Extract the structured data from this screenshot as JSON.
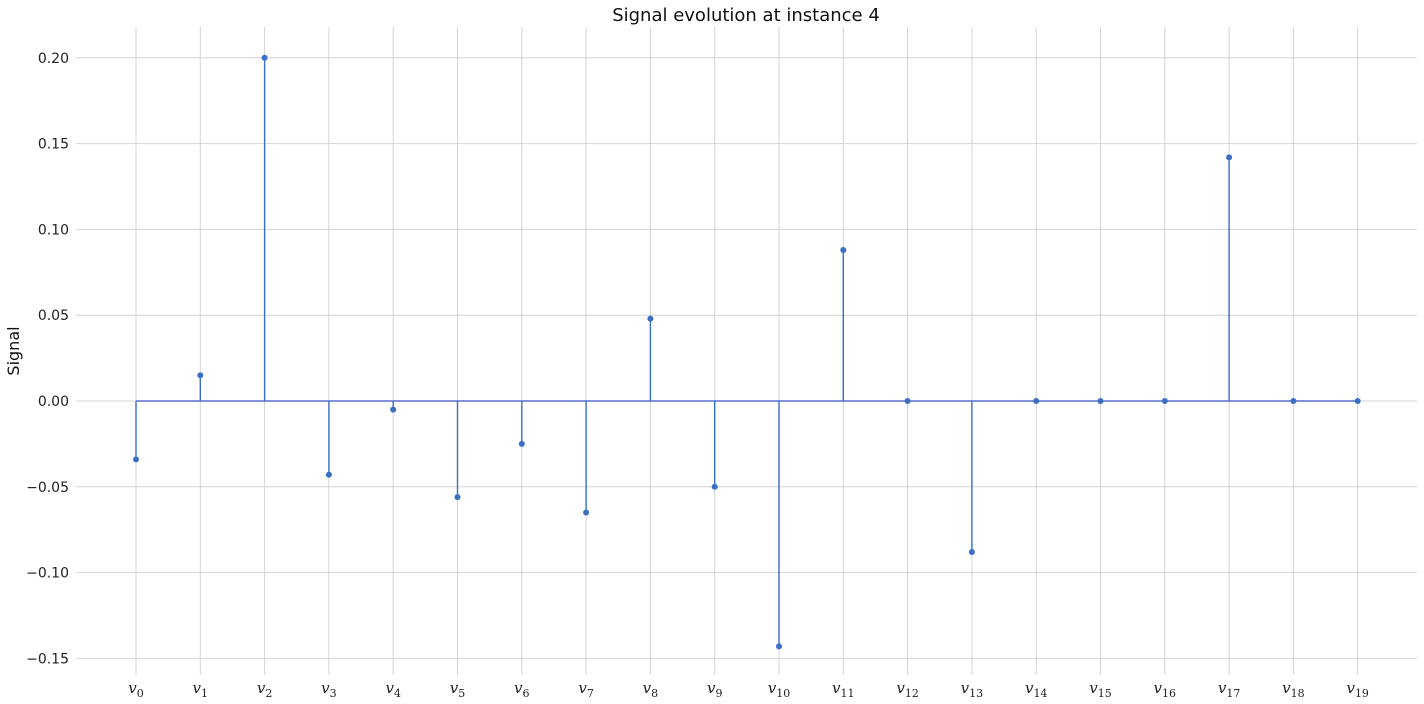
{
  "chart_data": {
    "type": "stem",
    "title": "Signal evolution at instance 4",
    "xlabel": "",
    "ylabel": "Signal",
    "categories": [
      {
        "base": "v",
        "sub": "0"
      },
      {
        "base": "v",
        "sub": "1"
      },
      {
        "base": "v",
        "sub": "2"
      },
      {
        "base": "v",
        "sub": "3"
      },
      {
        "base": "v",
        "sub": "4"
      },
      {
        "base": "v",
        "sub": "5"
      },
      {
        "base": "v",
        "sub": "6"
      },
      {
        "base": "v",
        "sub": "7"
      },
      {
        "base": "v",
        "sub": "8"
      },
      {
        "base": "v",
        "sub": "9"
      },
      {
        "base": "v",
        "sub": "10"
      },
      {
        "base": "v",
        "sub": "11"
      },
      {
        "base": "v",
        "sub": "12"
      },
      {
        "base": "v",
        "sub": "13"
      },
      {
        "base": "v",
        "sub": "14"
      },
      {
        "base": "v",
        "sub": "15"
      },
      {
        "base": "v",
        "sub": "16"
      },
      {
        "base": "v",
        "sub": "17"
      },
      {
        "base": "v",
        "sub": "18"
      },
      {
        "base": "v",
        "sub": "19"
      }
    ],
    "values": [
      -0.034,
      0.015,
      0.2,
      -0.043,
      -0.005,
      -0.056,
      -0.025,
      -0.065,
      0.048,
      -0.05,
      -0.143,
      0.088,
      0.0,
      -0.088,
      0.0,
      0.0,
      0.0,
      0.142,
      0.0,
      0.0
    ],
    "ylim": [
      -0.16,
      0.21
    ],
    "yticks": [
      -0.15,
      -0.1,
      -0.05,
      0.0,
      0.05,
      0.1,
      0.15,
      0.2
    ],
    "ytick_labels": [
      "−0.15",
      "−0.10",
      "−0.05",
      "0.00",
      "0.05",
      "0.10",
      "0.15",
      "0.20"
    ],
    "grid": true,
    "colors": {
      "stem": "#3a6fc4",
      "baseline": "#5b6fd0",
      "grid": "#d4d4d4"
    }
  }
}
